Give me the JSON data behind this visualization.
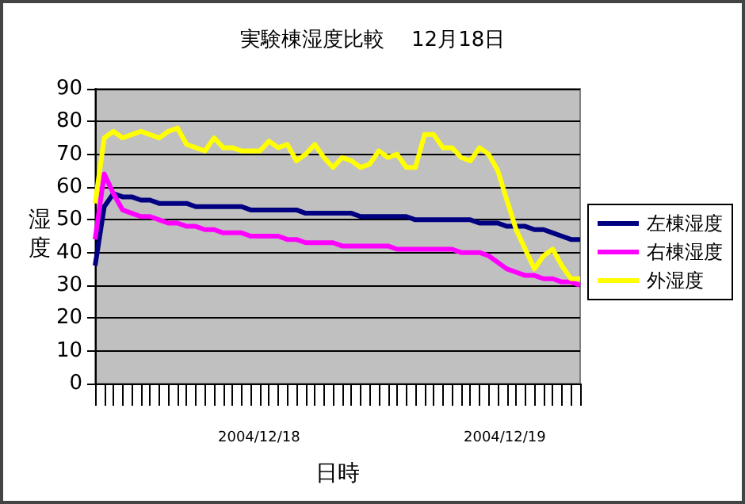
{
  "chart_data": {
    "type": "line",
    "title": "実験棟湿度比較　 12月18日",
    "xlabel": "日時",
    "ylabel": "湿度",
    "categories": [
      null,
      null,
      null,
      null,
      null,
      null,
      null,
      null,
      null,
      null,
      null,
      null,
      null,
      null,
      null,
      null,
      null,
      null,
      null,
      null,
      null,
      null,
      null,
      null,
      null,
      null,
      null,
      null,
      null,
      null,
      null,
      null,
      null,
      null,
      null,
      null,
      null,
      null,
      null,
      null,
      null,
      null,
      null,
      null,
      null,
      null,
      null,
      null,
      null,
      null,
      null,
      null,
      null,
      null
    ],
    "series": [
      {
        "name": "左棟湿度",
        "color": "#000080",
        "values": [
          36,
          54,
          58,
          57,
          57,
          56,
          56,
          55,
          55,
          55,
          55,
          54,
          54,
          54,
          54,
          54,
          54,
          53,
          53,
          53,
          53,
          53,
          53,
          52,
          52,
          52,
          52,
          52,
          52,
          51,
          51,
          51,
          51,
          51,
          51,
          50,
          50,
          50,
          50,
          50,
          50,
          50,
          49,
          49,
          49,
          48,
          48,
          48,
          47,
          47,
          46,
          45,
          44,
          44
        ]
      },
      {
        "name": "右棟湿度",
        "color": "#ff00ff",
        "values": [
          44,
          64,
          58,
          53,
          52,
          51,
          51,
          50,
          49,
          49,
          48,
          48,
          47,
          47,
          46,
          46,
          46,
          45,
          45,
          45,
          45,
          44,
          44,
          43,
          43,
          43,
          43,
          42,
          42,
          42,
          42,
          42,
          42,
          41,
          41,
          41,
          41,
          41,
          41,
          41,
          40,
          40,
          40,
          39,
          37,
          35,
          34,
          33,
          33,
          32,
          32,
          31,
          31,
          30
        ]
      },
      {
        "name": "外湿度",
        "color": "#ffff00",
        "values": [
          55,
          75,
          77,
          75,
          76,
          77,
          76,
          75,
          77,
          78,
          73,
          72,
          71,
          75,
          72,
          72,
          71,
          71,
          71,
          74,
          72,
          73,
          68,
          70,
          73,
          69,
          66,
          69,
          68,
          66,
          67,
          71,
          69,
          70,
          66,
          66,
          76,
          76,
          72,
          72,
          69,
          68,
          72,
          70,
          65,
          56,
          47,
          41,
          35,
          39,
          41,
          36,
          32,
          32
        ]
      }
    ],
    "annotations": [
      "2004/12/18",
      "2004/12/19"
    ],
    "ylim": [
      0,
      90
    ],
    "yticks": [
      0,
      10,
      20,
      30,
      40,
      50,
      60,
      70,
      80,
      90
    ],
    "grid": "y",
    "legend": "right",
    "marker": "none",
    "line_style": "solid"
  }
}
